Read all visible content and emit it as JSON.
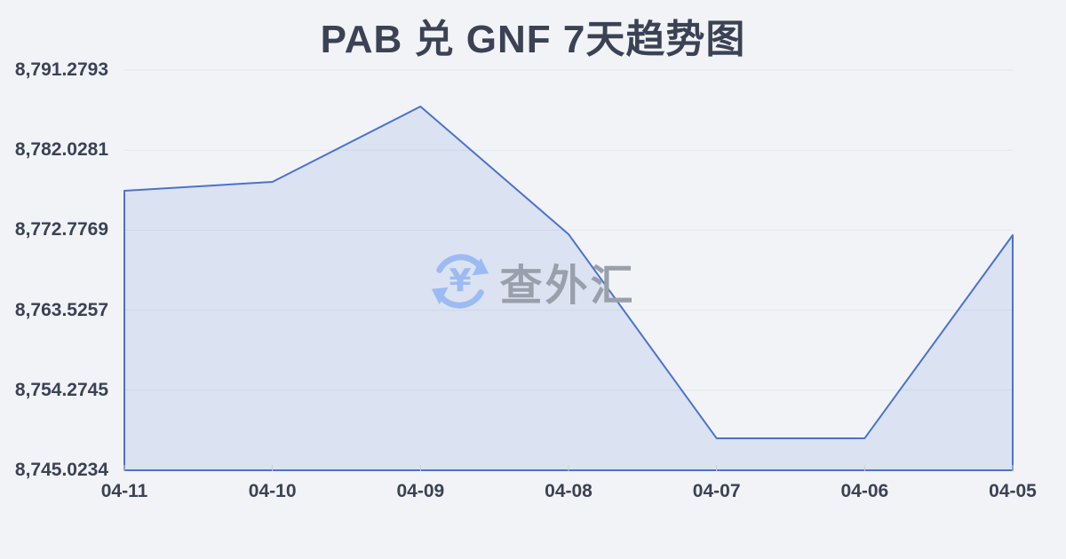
{
  "page": {
    "background": "#f1f3f6"
  },
  "watermark": {
    "text": "查外汇",
    "logo_icon": "refresh-yen-icon",
    "logo_color": "#9cbbf2",
    "text_color": "#9aa0ab"
  },
  "chart_data": {
    "type": "area",
    "title": "PAB 兑 GNF 7天趋势图",
    "x": [
      "04-11",
      "04-10",
      "04-09",
      "04-08",
      "04-07",
      "04-06",
      "04-05"
    ],
    "values": [
      8777.33,
      8778.36,
      8787.07,
      8772.31,
      8748.72,
      8748.72,
      8772.2
    ],
    "y_tick_labels": [
      "8,791.2793",
      "8,782.0281",
      "8,772.7769",
      "8,763.5257",
      "8,754.2745",
      "8,745.0234"
    ],
    "ylim": [
      8745.0234,
      8791.2793
    ],
    "xlabel": "",
    "ylabel": "",
    "grid": true,
    "legend": "none",
    "style": {
      "line_color": "#4b72ce",
      "fill_color": "rgba(76,114,206,0.13)",
      "grid_color": "#e3e6ec",
      "axis_line_color": "#dfe2e9",
      "tick_color": "#c9cdd5",
      "text_color": "#3a4254"
    }
  }
}
